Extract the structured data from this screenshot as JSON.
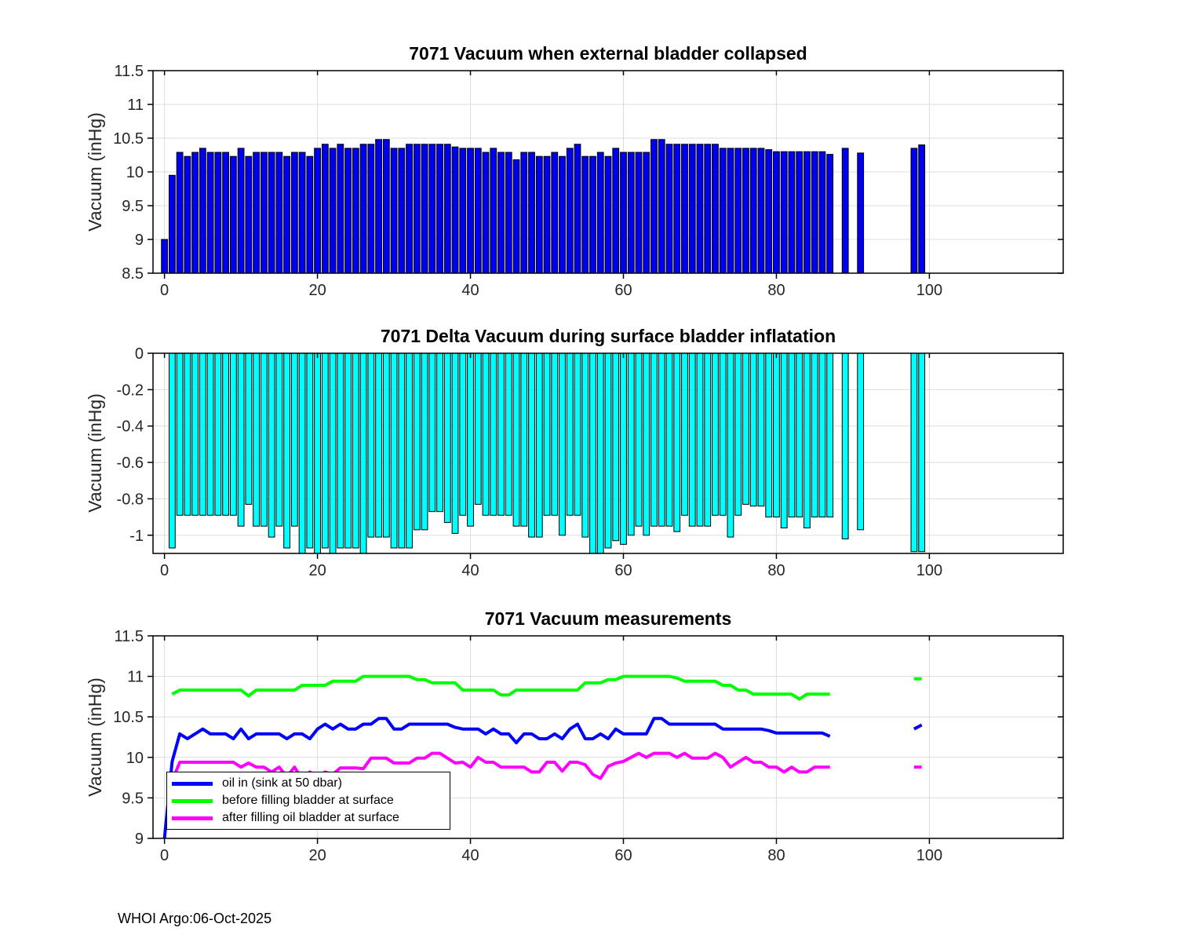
{
  "figure": {
    "footer": "WHOI Argo:06-Oct-2025",
    "background": "#ffffff",
    "float_id": "7071"
  },
  "chart_data": [
    {
      "type": "bar",
      "title": "7071 Vacuum when external bladder collapsed",
      "xlabel": "",
      "ylabel": "Vacuum (inHg)",
      "bar_color": "#0000ee",
      "bar_edge_color": "#000000",
      "grid": true,
      "xlim": [
        -1.5,
        117.5
      ],
      "ylim": [
        8.5,
        11.5
      ],
      "xticks": [
        0,
        20,
        40,
        60,
        80,
        100
      ],
      "yticks": [
        8.5,
        9,
        9.5,
        10,
        10.5,
        11,
        11.5
      ],
      "x": "profile index 0-99 (nulls = missing profiles)",
      "baseline": 8.5,
      "values": [
        9.0,
        9.95,
        10.29,
        10.23,
        10.29,
        10.35,
        10.29,
        10.29,
        10.29,
        10.23,
        10.35,
        10.23,
        10.29,
        10.29,
        10.29,
        10.29,
        10.23,
        10.29,
        10.29,
        10.23,
        10.35,
        10.41,
        10.35,
        10.41,
        10.35,
        10.35,
        10.41,
        10.41,
        10.48,
        10.48,
        10.35,
        10.35,
        10.41,
        10.41,
        10.41,
        10.41,
        10.41,
        10.41,
        10.37,
        10.35,
        10.35,
        10.35,
        10.29,
        10.35,
        10.29,
        10.29,
        10.18,
        10.29,
        10.29,
        10.23,
        10.23,
        10.29,
        10.23,
        10.35,
        10.41,
        10.23,
        10.23,
        10.29,
        10.23,
        10.35,
        10.29,
        10.29,
        10.29,
        10.29,
        10.48,
        10.48,
        10.41,
        10.41,
        10.41,
        10.41,
        10.41,
        10.41,
        10.41,
        10.35,
        10.35,
        10.35,
        10.35,
        10.35,
        10.35,
        10.33,
        10.3,
        10.3,
        10.3,
        10.3,
        10.3,
        10.3,
        10.3,
        10.26,
        null,
        10.35,
        null,
        10.28,
        null,
        null,
        null,
        null,
        null,
        null,
        10.35,
        10.4
      ]
    },
    {
      "type": "bar",
      "title": "7071 Delta Vacuum during surface bladder inflatation",
      "xlabel": "",
      "ylabel": "Vacuum (inHg)",
      "bar_color": "#00ffff",
      "bar_edge_color": "#000000",
      "grid": true,
      "xlim": [
        -1.5,
        117.5
      ],
      "ylim": [
        -1.1,
        0
      ],
      "xticks": [
        0,
        20,
        40,
        60,
        80,
        100
      ],
      "yticks": [
        0,
        -0.2,
        -0.4,
        -0.6,
        -0.8,
        -1
      ],
      "x": "profile index 0-99 (nulls = missing profiles; values below -1.1 are clipped by axis)",
      "baseline": 0,
      "values": [
        null,
        -1.07,
        -0.89,
        -0.89,
        -0.89,
        -0.89,
        -0.89,
        -0.89,
        -0.89,
        -0.89,
        -0.95,
        -0.83,
        -0.95,
        -0.95,
        -1.01,
        -0.95,
        -1.07,
        -0.95,
        -1.16,
        -1.07,
        -1.14,
        -1.07,
        -1.15,
        -1.07,
        -1.07,
        -1.07,
        -1.14,
        -1.01,
        -1.01,
        -1.01,
        -1.07,
        -1.07,
        -1.07,
        -0.97,
        -0.97,
        -0.87,
        -0.87,
        -0.93,
        -0.99,
        -0.89,
        -0.95,
        -0.83,
        -0.89,
        -0.89,
        -0.89,
        -0.89,
        -0.95,
        -0.95,
        -1.01,
        -1.01,
        -0.89,
        -0.89,
        -1.0,
        -0.89,
        -0.89,
        -1.01,
        -1.13,
        -1.18,
        -1.07,
        -1.03,
        -1.05,
        -1.0,
        -0.95,
        -1.0,
        -0.95,
        -0.95,
        -0.95,
        -0.98,
        -0.89,
        -0.95,
        -0.95,
        -0.95,
        -0.89,
        -0.89,
        -1.01,
        -0.89,
        -0.83,
        -0.84,
        -0.84,
        -0.9,
        -0.9,
        -0.96,
        -0.9,
        -0.9,
        -0.96,
        -0.9,
        -0.9,
        -0.9,
        null,
        -1.02,
        null,
        -0.97,
        null,
        null,
        null,
        null,
        null,
        null,
        -1.09,
        -1.09
      ]
    },
    {
      "type": "line",
      "title": "7071 Vacuum measurements",
      "xlabel": "",
      "ylabel": "Vacuum (inHg)",
      "grid": true,
      "xlim": [
        -1.5,
        117.5
      ],
      "ylim": [
        9,
        11.5
      ],
      "xticks": [
        0,
        20,
        40,
        60,
        80,
        100
      ],
      "yticks": [
        9,
        9.5,
        10,
        10.5,
        11,
        11.5
      ],
      "x": "profile index 0-99 (nulls = missing profiles; isolated points are not drawn)",
      "legend_position": "bottom-left",
      "series": [
        {
          "name": "oil in (sink at 50 dbar)",
          "color": "#0000ff",
          "values": [
            9.0,
            9.95,
            10.29,
            10.23,
            10.29,
            10.35,
            10.29,
            10.29,
            10.29,
            10.23,
            10.35,
            10.23,
            10.29,
            10.29,
            10.29,
            10.29,
            10.23,
            10.29,
            10.29,
            10.23,
            10.35,
            10.41,
            10.35,
            10.41,
            10.35,
            10.35,
            10.41,
            10.41,
            10.48,
            10.48,
            10.35,
            10.35,
            10.41,
            10.41,
            10.41,
            10.41,
            10.41,
            10.41,
            10.37,
            10.35,
            10.35,
            10.35,
            10.29,
            10.35,
            10.29,
            10.29,
            10.18,
            10.29,
            10.29,
            10.23,
            10.23,
            10.29,
            10.23,
            10.35,
            10.41,
            10.23,
            10.23,
            10.29,
            10.23,
            10.35,
            10.29,
            10.29,
            10.29,
            10.29,
            10.48,
            10.48,
            10.41,
            10.41,
            10.41,
            10.41,
            10.41,
            10.41,
            10.41,
            10.35,
            10.35,
            10.35,
            10.35,
            10.35,
            10.35,
            10.33,
            10.3,
            10.3,
            10.3,
            10.3,
            10.3,
            10.3,
            10.3,
            10.26,
            null,
            10.35,
            null,
            10.28,
            null,
            null,
            null,
            null,
            null,
            null,
            10.35,
            10.4
          ]
        },
        {
          "name": "before filling bladder at surface",
          "color": "#00ff00",
          "values": [
            null,
            10.78,
            10.83,
            10.83,
            10.83,
            10.83,
            10.83,
            10.83,
            10.83,
            10.83,
            10.83,
            10.76,
            10.83,
            10.83,
            10.83,
            10.83,
            10.83,
            10.83,
            10.89,
            10.89,
            10.89,
            10.89,
            10.94,
            10.94,
            10.94,
            10.94,
            11.0,
            11.0,
            11.0,
            11.0,
            11.0,
            11.0,
            11.0,
            10.96,
            10.96,
            10.92,
            10.92,
            10.92,
            10.92,
            10.83,
            10.83,
            10.83,
            10.83,
            10.83,
            10.77,
            10.77,
            10.83,
            10.83,
            10.83,
            10.83,
            10.83,
            10.83,
            10.83,
            10.83,
            10.83,
            10.92,
            10.92,
            10.92,
            10.96,
            10.96,
            11.0,
            11.0,
            11.0,
            11.0,
            11.0,
            11.0,
            11.0,
            10.98,
            10.94,
            10.94,
            10.94,
            10.94,
            10.94,
            10.89,
            10.89,
            10.83,
            10.83,
            10.78,
            10.78,
            10.78,
            10.78,
            10.78,
            10.78,
            10.72,
            10.78,
            10.78,
            10.78,
            10.78,
            null,
            null,
            null,
            null,
            null,
            null,
            null,
            null,
            null,
            null,
            10.97,
            10.97
          ]
        },
        {
          "name": "after filling oil bladder at surface",
          "color": "#ff00ff",
          "values": [
            null,
            9.71,
            9.94,
            9.94,
            9.94,
            9.94,
            9.94,
            9.94,
            9.94,
            9.94,
            9.88,
            9.93,
            9.88,
            9.88,
            9.82,
            9.88,
            9.76,
            9.88,
            9.73,
            9.82,
            9.75,
            9.82,
            9.79,
            9.87,
            9.87,
            9.87,
            9.86,
            9.99,
            9.99,
            9.99,
            9.93,
            9.93,
            9.93,
            9.99,
            9.99,
            10.05,
            10.05,
            9.99,
            9.93,
            9.94,
            9.88,
            10.0,
            9.94,
            9.94,
            9.88,
            9.88,
            9.88,
            9.88,
            9.82,
            9.82,
            9.94,
            9.94,
            9.83,
            9.94,
            9.94,
            9.91,
            9.79,
            9.74,
            9.89,
            9.93,
            9.95,
            10.0,
            10.05,
            10.0,
            10.05,
            10.05,
            10.05,
            10.0,
            10.05,
            9.99,
            9.99,
            9.99,
            10.05,
            10.0,
            9.88,
            9.94,
            10.0,
            9.94,
            9.94,
            9.88,
            9.88,
            9.82,
            9.88,
            9.82,
            9.82,
            9.88,
            9.88,
            9.88,
            null,
            null,
            null,
            null,
            null,
            null,
            null,
            null,
            null,
            null,
            9.88,
            9.88
          ]
        }
      ]
    }
  ]
}
